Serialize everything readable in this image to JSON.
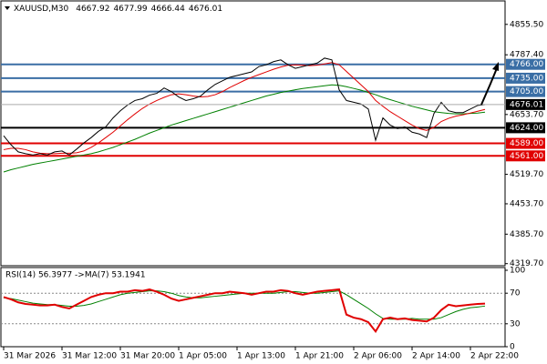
{
  "chart_data": [
    {
      "type": "line",
      "title": "XAUUSD,M30",
      "ohlc": [
        4667.92,
        4677.99,
        4666.44,
        4676.01
      ],
      "xlim": [
        0,
        67
      ],
      "ylim": [
        4313,
        4906
      ],
      "yticks": [
        {
          "value": 4855.5,
          "label": "4855.50"
        },
        {
          "value": 4787.4,
          "label": "4787.40"
        },
        {
          "value": 4653.7,
          "label": "4653.70"
        },
        {
          "value": 4519.7,
          "label": "4519.70"
        },
        {
          "value": 4453.7,
          "label": "4453.70"
        },
        {
          "value": 4385.7,
          "label": "4385.70"
        },
        {
          "value": 4319.7,
          "label": "4319.70"
        }
      ],
      "levels": [
        {
          "value": 4766,
          "label": "4766.00",
          "color": "#3a6ea5"
        },
        {
          "value": 4735,
          "label": "4735.00",
          "color": "#3a6ea5"
        },
        {
          "value": 4705,
          "label": "4705.00",
          "color": "#3a6ea5"
        },
        {
          "value": 4624,
          "label": "4624.00",
          "color": "#000000"
        },
        {
          "value": 4589,
          "label": "4589.00",
          "color": "#e00000"
        },
        {
          "value": 4561,
          "label": "4561.00",
          "color": "#e00000"
        }
      ],
      "last": 4676.01,
      "series": [
        {
          "color": "#000000",
          "values": [
            4606,
            4586,
            4570,
            4566,
            4563,
            4566,
            4563,
            4570,
            4572,
            4563,
            4576,
            4590,
            4602,
            4616,
            4626,
            4646,
            4662,
            4675,
            4685,
            4689,
            4697,
            4701,
            4713,
            4705,
            4693,
            4685,
            4689,
            4695,
            4709,
            4721,
            4729,
            4737,
            4741,
            4745,
            4749,
            4761,
            4765,
            4772,
            4776,
            4765,
            4757,
            4761,
            4765,
            4769,
            4780,
            4776,
            4709,
            4685,
            4681,
            4677,
            4666,
            4596,
            4646,
            4630,
            4622,
            4626,
            4614,
            4610,
            4602,
            4656,
            4681,
            4662,
            4658,
            4658,
            4666,
            4674,
            4676.01
          ]
        },
        {
          "color": "#e00000",
          "values": [
            4575,
            4578,
            4578,
            4575,
            4570,
            4567,
            4566,
            4566,
            4567,
            4567,
            4568,
            4572,
            4580,
            4590,
            4602,
            4614,
            4628,
            4642,
            4655,
            4667,
            4677,
            4685,
            4692,
            4698,
            4700,
            4698,
            4695,
            4693,
            4694,
            4698,
            4705,
            4714,
            4722,
            4730,
            4737,
            4743,
            4749,
            4755,
            4760,
            4764,
            4765,
            4764,
            4763,
            4764,
            4767,
            4770,
            4765,
            4750,
            4735,
            4720,
            4705,
            4685,
            4672,
            4660,
            4650,
            4640,
            4630,
            4622,
            4618,
            4625,
            4638,
            4645,
            4650,
            4653,
            4657,
            4661,
            4665
          ]
        },
        {
          "color": "#008000",
          "values": [
            4525,
            4530,
            4534,
            4538,
            4542,
            4545,
            4548,
            4551,
            4554,
            4557,
            4560,
            4563,
            4566,
            4570,
            4575,
            4580,
            4586,
            4592,
            4598,
            4605,
            4612,
            4618,
            4624,
            4630,
            4635,
            4640,
            4645,
            4650,
            4655,
            4660,
            4665,
            4670,
            4675,
            4680,
            4685,
            4690,
            4695,
            4699,
            4703,
            4706,
            4709,
            4712,
            4714,
            4716,
            4718,
            4720,
            4719,
            4716,
            4712,
            4708,
            4703,
            4698,
            4692,
            4687,
            4682,
            4677,
            4672,
            4668,
            4664,
            4660,
            4658,
            4656,
            4655,
            4655,
            4656,
            4657,
            4659
          ]
        }
      ]
    },
    {
      "type": "line",
      "title": "RSI(14) 56.3977 ->MA(7) 53.1941",
      "xlim": [
        0,
        67
      ],
      "ylim": [
        0,
        100
      ],
      "yticks": [
        100,
        70,
        30,
        0
      ],
      "levels": [
        70,
        30
      ],
      "xticks": [
        {
          "value": 0,
          "label": "31 Mar 2026"
        },
        {
          "value": 8,
          "label": "31 Mar 12:00"
        },
        {
          "value": 16,
          "label": "31 Mar 20:00"
        },
        {
          "value": 24,
          "label": "1 Apr 05:00"
        },
        {
          "value": 32,
          "label": "1 Apr 13:00"
        },
        {
          "value": 40,
          "label": "1 Apr 21:00"
        },
        {
          "value": 48,
          "label": "2 Apr 06:00"
        },
        {
          "value": 56,
          "label": "2 Apr 14:00"
        },
        {
          "value": 64,
          "label": "2 Apr 22:00"
        }
      ],
      "series": [
        {
          "color": "#e00000",
          "values": [
            65,
            62,
            58,
            56,
            55,
            54,
            54,
            55,
            52,
            50,
            55,
            60,
            65,
            68,
            70,
            70,
            72,
            72,
            74,
            73,
            75,
            72,
            68,
            63,
            60,
            62,
            64,
            66,
            68,
            70,
            70,
            72,
            71,
            70,
            68,
            70,
            72,
            72,
            74,
            73,
            70,
            68,
            70,
            72,
            73,
            74,
            75,
            42,
            38,
            36,
            32,
            20,
            36,
            38,
            36,
            37,
            35,
            34,
            33,
            38,
            48,
            55,
            53,
            54,
            55,
            56,
            56.4
          ]
        },
        {
          "color": "#008000",
          "values": [
            64,
            63,
            61,
            59,
            57,
            56,
            55,
            55,
            54,
            53,
            53,
            54,
            56,
            59,
            62,
            65,
            68,
            70,
            71,
            72,
            73,
            73,
            72,
            70,
            67,
            65,
            64,
            64,
            65,
            66,
            67,
            68,
            69,
            70,
            70,
            70,
            70,
            70,
            71,
            72,
            72,
            71,
            70,
            70,
            71,
            72,
            73,
            68,
            62,
            56,
            50,
            43,
            37,
            36,
            36,
            36,
            37,
            36,
            36,
            36,
            38,
            42,
            46,
            49,
            51,
            52,
            53.2
          ]
        }
      ]
    }
  ]
}
